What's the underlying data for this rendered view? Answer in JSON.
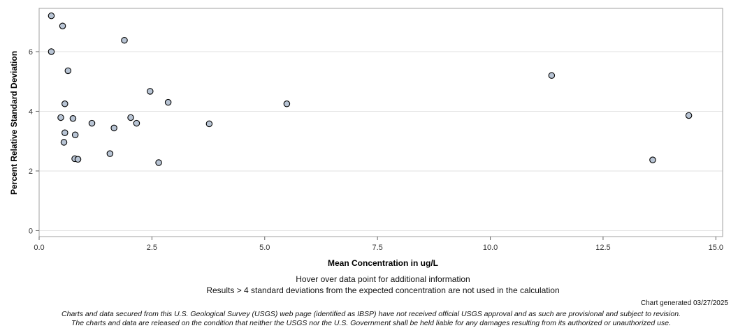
{
  "chart_data": {
    "type": "scatter",
    "xlabel": "Mean Concentration in ug/L",
    "ylabel": "Percent Relative Standard Deviation",
    "xlim": [
      0,
      15.15
    ],
    "ylim": [
      -0.2,
      7.45
    ],
    "xticks": [
      0.0,
      2.5,
      5.0,
      7.5,
      10.0,
      12.5,
      15.0
    ],
    "xtick_labels": [
      "0.0",
      "2.5",
      "5.0",
      "7.5",
      "10.0",
      "12.5",
      "15.0"
    ],
    "yticks": [
      0,
      2,
      4,
      6
    ],
    "ytick_labels": [
      "0",
      "2",
      "4",
      "6"
    ],
    "grid": "horizontal",
    "marker_fill": "#b8c4d4",
    "marker_stroke": "#000000",
    "points": [
      {
        "x": 0.27,
        "y": 7.2
      },
      {
        "x": 0.52,
        "y": 6.86
      },
      {
        "x": 0.27,
        "y": 6.0
      },
      {
        "x": 1.89,
        "y": 6.38
      },
      {
        "x": 0.64,
        "y": 5.36
      },
      {
        "x": 0.57,
        "y": 4.25
      },
      {
        "x": 2.46,
        "y": 4.67
      },
      {
        "x": 2.86,
        "y": 4.3
      },
      {
        "x": 5.49,
        "y": 4.25
      },
      {
        "x": 0.48,
        "y": 3.79
      },
      {
        "x": 0.75,
        "y": 3.76
      },
      {
        "x": 2.03,
        "y": 3.79
      },
      {
        "x": 1.17,
        "y": 3.6
      },
      {
        "x": 2.16,
        "y": 3.6
      },
      {
        "x": 3.77,
        "y": 3.58
      },
      {
        "x": 1.66,
        "y": 3.44
      },
      {
        "x": 0.57,
        "y": 3.28
      },
      {
        "x": 0.8,
        "y": 3.21
      },
      {
        "x": 0.55,
        "y": 2.96
      },
      {
        "x": 1.57,
        "y": 2.58
      },
      {
        "x": 0.79,
        "y": 2.41
      },
      {
        "x": 0.86,
        "y": 2.39
      },
      {
        "x": 2.65,
        "y": 2.28
      },
      {
        "x": 11.36,
        "y": 5.2
      },
      {
        "x": 13.6,
        "y": 2.37
      },
      {
        "x": 14.4,
        "y": 3.86
      }
    ]
  },
  "notes": {
    "hover": "Hover over data point for additional information",
    "results": "Results > 4 standard deviations from the expected concentration are not used in the calculation",
    "generated": "Chart generated 03/27/2025",
    "disclaimer_line1": "Charts and data secured from this U.S. Geological Survey (USGS) web page (identified as IBSP) have not received official USGS approval and as such are provisional and subject to revision.",
    "disclaimer_line2": "The charts and data are released on the condition that neither the USGS nor the U.S. Government shall be held liable for any damages resulting from its authorized or unauthorized use."
  }
}
